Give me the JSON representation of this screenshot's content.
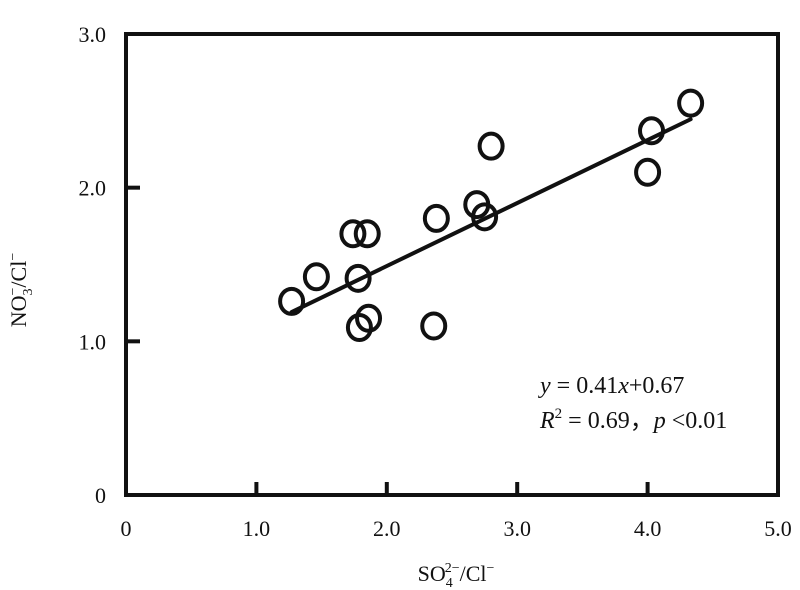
{
  "chart_data": {
    "type": "scatter",
    "title": "",
    "xlabel": {
      "base": "SO",
      "sub": "4",
      "sup": "2−",
      "rest": "/Cl",
      "rest_sup": "−"
    },
    "ylabel": {
      "base": "NO",
      "sub": "3",
      "sup": "−",
      "rest": "/Cl",
      "rest_sup": "−"
    },
    "xlim": [
      0,
      5
    ],
    "ylim": [
      0,
      3
    ],
    "x_ticks": [
      0,
      1,
      2,
      3,
      4,
      5
    ],
    "y_ticks": [
      0,
      1,
      2,
      3
    ],
    "x_tick_labels": [
      "0",
      "1.0",
      "2.0",
      "3.0",
      "4.0",
      "5.0"
    ],
    "y_tick_labels": [
      "0",
      "1.0",
      "2.0",
      "3.0"
    ],
    "grid": false,
    "points": [
      {
        "x": 1.27,
        "y": 1.26
      },
      {
        "x": 1.46,
        "y": 1.42
      },
      {
        "x": 1.74,
        "y": 1.7
      },
      {
        "x": 1.85,
        "y": 1.7
      },
      {
        "x": 1.78,
        "y": 1.41
      },
      {
        "x": 1.79,
        "y": 1.09
      },
      {
        "x": 1.86,
        "y": 1.15
      },
      {
        "x": 2.36,
        "y": 1.1
      },
      {
        "x": 2.38,
        "y": 1.8
      },
      {
        "x": 2.69,
        "y": 1.89
      },
      {
        "x": 2.75,
        "y": 1.81
      },
      {
        "x": 2.8,
        "y": 2.27
      },
      {
        "x": 4.0,
        "y": 2.1
      },
      {
        "x": 4.03,
        "y": 2.37
      },
      {
        "x": 4.33,
        "y": 2.55
      }
    ],
    "fit_line": {
      "slope": 0.41,
      "intercept": 0.67,
      "x_range": [
        1.27,
        4.33
      ]
    },
    "annotation": {
      "equation": {
        "y": "y",
        "eq": " = 0.41",
        "x": "x",
        "rest": "+0.67"
      },
      "stats": {
        "r": "R",
        "r_sup": "2",
        "r_rest": " = 0.69，",
        "p": "p",
        "p_rest": " <0.01"
      }
    }
  }
}
